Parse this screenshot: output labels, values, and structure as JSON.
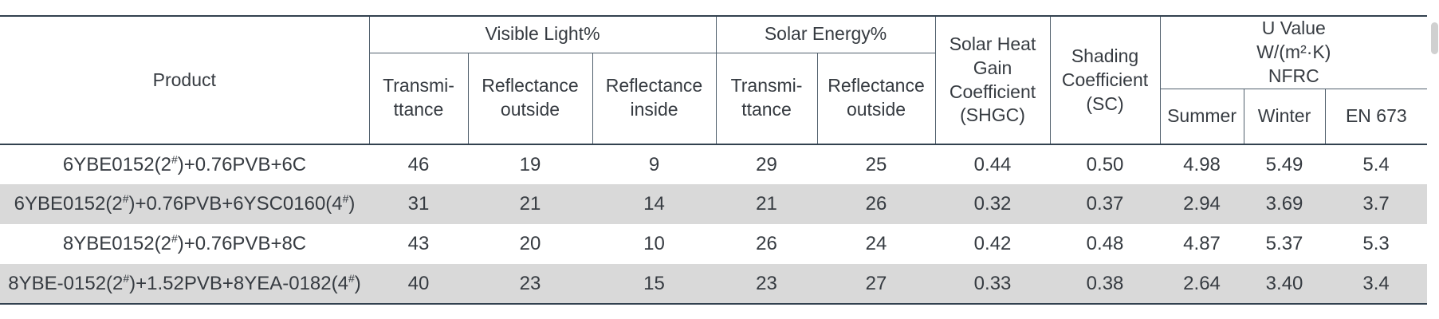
{
  "table": {
    "header": {
      "product": "Product",
      "visible_light": "Visible Light%",
      "solar_energy": "Solar Energy%",
      "shgc": "Solar Heat\nGain\nCoefficient\n(SHGC)",
      "sc": "Shading\nCoefficient\n(SC)",
      "u_value": "U Value\nW/(m²·K)\nNFRC",
      "transmittance": "Transmi-\nttance",
      "reflectance_outside": "Reflectance\noutside",
      "reflectance_inside": "Reflectance\ninside",
      "summer": "Summer",
      "winter": "Winter",
      "en_673": "EN 673"
    },
    "rows": [
      {
        "product": "6YBE0152(2#)+0.76PVB+6C",
        "values": [
          "46",
          "19",
          "9",
          "29",
          "25",
          "0.44",
          "0.50",
          "4.98",
          "5.49",
          "5.4"
        ]
      },
      {
        "product": "6YBE0152(2#)+0.76PVB+6YSC0160(4#)",
        "values": [
          "31",
          "21",
          "14",
          "21",
          "26",
          "0.32",
          "0.37",
          "2.94",
          "3.69",
          "3.7"
        ]
      },
      {
        "product": "8YBE0152(2#)+0.76PVB+8C",
        "values": [
          "43",
          "20",
          "10",
          "26",
          "24",
          "0.42",
          "0.48",
          "4.87",
          "5.37",
          "5.3"
        ]
      },
      {
        "product": "8YBE-0152(2#)+1.52PVB+8YEA-0182(4#)",
        "values": [
          "40",
          "23",
          "15",
          "23",
          "27",
          "0.33",
          "0.38",
          "2.64",
          "3.40",
          "3.4"
        ]
      }
    ]
  },
  "colors": {
    "border_major": "#32414f",
    "border_minor": "#51606d",
    "row_band": "#d9d9d9",
    "text": "#363b41"
  }
}
